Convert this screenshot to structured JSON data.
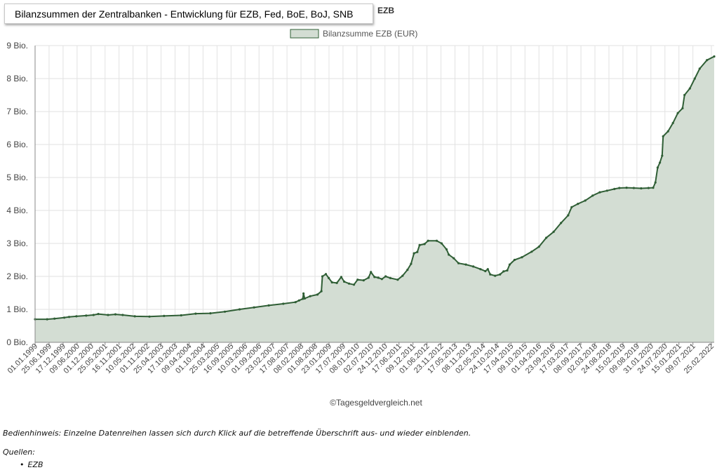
{
  "header": {
    "title": "Bilanzsummen der Zentralbanken - Entwicklung für EZB, Fed, BoE, BoJ, SNB",
    "title_overlap": "EZB"
  },
  "footer": {
    "credit": "©Tagesgeldvergleich.net",
    "hint": "Bedienhinweis: Einzelne Datenreihen lassen sich durch Klick auf die betreffende Überschrift aus- und wieder einblenden.",
    "sources_label": "Quellen:",
    "sources": [
      "EZB"
    ]
  },
  "chart_data": {
    "type": "area",
    "title": "Bilanzsummen der Zentralbanken - Entwicklung für EZB, Fed, BoE, BoJ, SNB",
    "legend_position": "top",
    "grid": true,
    "x_start": "1999-01-01",
    "x_end": "2022-04-01",
    "ylim": [
      0,
      9
    ],
    "y_ticks": [
      {
        "value": 0,
        "label": "0 Bio."
      },
      {
        "value": 1,
        "label": "1 Bio."
      },
      {
        "value": 2,
        "label": "2 Bio."
      },
      {
        "value": 3,
        "label": "3 Bio."
      },
      {
        "value": 4,
        "label": "4 Bio."
      },
      {
        "value": 5,
        "label": "5 Bio."
      },
      {
        "value": 6,
        "label": "6 Bio."
      },
      {
        "value": 7,
        "label": "7 Bio."
      },
      {
        "value": 8,
        "label": "8 Bio."
      },
      {
        "value": 9,
        "label": "9 Bio."
      }
    ],
    "x_tick_labels": [
      {
        "date": "1999-01-01",
        "label": "01.01.1999"
      },
      {
        "date": "1999-06-25",
        "label": "25.06.1999"
      },
      {
        "date": "1999-12-17",
        "label": "17.12.1999"
      },
      {
        "date": "2000-06-09",
        "label": "09.06.2000"
      },
      {
        "date": "2000-12-01",
        "label": "01.12.2000"
      },
      {
        "date": "2001-05-25",
        "label": "25.05.2001"
      },
      {
        "date": "2001-11-16",
        "label": "16.11.2001"
      },
      {
        "date": "2002-05-10",
        "label": "10.05.2002"
      },
      {
        "date": "2002-11-01",
        "label": "01.11.2002"
      },
      {
        "date": "2003-04-25",
        "label": "25.04.2003"
      },
      {
        "date": "2003-10-17",
        "label": "17.10.2003"
      },
      {
        "date": "2004-04-09",
        "label": "09.04.2004"
      },
      {
        "date": "2004-10-01",
        "label": "01.10.2004"
      },
      {
        "date": "2005-03-25",
        "label": "25.03.2005"
      },
      {
        "date": "2005-09-16",
        "label": "16.09.2005"
      },
      {
        "date": "2006-03-10",
        "label": "10.03.2006"
      },
      {
        "date": "2006-09-01",
        "label": "01.09.2006"
      },
      {
        "date": "2007-02-23",
        "label": "23.02.2007"
      },
      {
        "date": "2007-08-17",
        "label": "17.08.2007"
      },
      {
        "date": "2008-02-08",
        "label": "08.02.2008"
      },
      {
        "date": "2008-08-01",
        "label": "01.08.2008"
      },
      {
        "date": "2009-01-23",
        "label": "23.01.2009"
      },
      {
        "date": "2009-07-17",
        "label": "17.07.2009"
      },
      {
        "date": "2010-01-08",
        "label": "08.01.2010"
      },
      {
        "date": "2010-07-02",
        "label": "02.07.2010"
      },
      {
        "date": "2010-12-24",
        "label": "24.12.2010"
      },
      {
        "date": "2011-06-17",
        "label": "17.06.2011"
      },
      {
        "date": "2011-12-09",
        "label": "09.12.2011"
      },
      {
        "date": "2012-06-01",
        "label": "01.06.2012"
      },
      {
        "date": "2012-11-23",
        "label": "23.11.2012"
      },
      {
        "date": "2013-05-17",
        "label": "17.05.2013"
      },
      {
        "date": "2013-11-08",
        "label": "08.11.2013"
      },
      {
        "date": "2014-05-02",
        "label": "02.05.2014"
      },
      {
        "date": "2014-10-24",
        "label": "24.10.2014"
      },
      {
        "date": "2015-04-17",
        "label": "17.04.2015"
      },
      {
        "date": "2015-10-09",
        "label": "09.10.2015"
      },
      {
        "date": "2016-04-01",
        "label": "01.04.2016"
      },
      {
        "date": "2016-09-23",
        "label": "23.09.2016"
      },
      {
        "date": "2017-03-17",
        "label": "17.03.2017"
      },
      {
        "date": "2017-09-08",
        "label": "08.09.2017"
      },
      {
        "date": "2018-03-02",
        "label": "02.03.2018"
      },
      {
        "date": "2018-08-24",
        "label": "24.08.2018"
      },
      {
        "date": "2019-02-15",
        "label": "15.02.2019"
      },
      {
        "date": "2019-08-09",
        "label": "09.08.2019"
      },
      {
        "date": "2020-01-31",
        "label": "31.01.2020"
      },
      {
        "date": "2020-07-24",
        "label": "24.07.2020"
      },
      {
        "date": "2021-01-15",
        "label": "15.01.2021"
      },
      {
        "date": "2021-07-09",
        "label": "09.07.2021"
      },
      {
        "date": "2022-02-25",
        "label": "25.02.2022"
      }
    ],
    "series": [
      {
        "name": "Bilanzsumme EZB (EUR)",
        "color": "#2f5e35",
        "fill": "#d3ddd3",
        "points": [
          {
            "date": "1999-01-01",
            "value": 0.7
          },
          {
            "date": "1999-06-01",
            "value": 0.7
          },
          {
            "date": "1999-09-01",
            "value": 0.72
          },
          {
            "date": "2000-01-01",
            "value": 0.75
          },
          {
            "date": "2000-03-01",
            "value": 0.77
          },
          {
            "date": "2000-06-01",
            "value": 0.79
          },
          {
            "date": "2000-10-01",
            "value": 0.81
          },
          {
            "date": "2001-01-01",
            "value": 0.83
          },
          {
            "date": "2001-03-01",
            "value": 0.86
          },
          {
            "date": "2001-07-01",
            "value": 0.83
          },
          {
            "date": "2001-10-01",
            "value": 0.85
          },
          {
            "date": "2002-01-01",
            "value": 0.83
          },
          {
            "date": "2002-06-01",
            "value": 0.79
          },
          {
            "date": "2002-12-01",
            "value": 0.78
          },
          {
            "date": "2003-06-01",
            "value": 0.8
          },
          {
            "date": "2004-01-01",
            "value": 0.82
          },
          {
            "date": "2004-07-01",
            "value": 0.87
          },
          {
            "date": "2005-01-01",
            "value": 0.88
          },
          {
            "date": "2005-07-01",
            "value": 0.93
          },
          {
            "date": "2006-01-01",
            "value": 1.0
          },
          {
            "date": "2006-07-01",
            "value": 1.06
          },
          {
            "date": "2007-01-01",
            "value": 1.12
          },
          {
            "date": "2007-07-01",
            "value": 1.17
          },
          {
            "date": "2007-12-01",
            "value": 1.22
          },
          {
            "date": "2008-01-15",
            "value": 1.27
          },
          {
            "date": "2008-03-01",
            "value": 1.32
          },
          {
            "date": "2008-03-10",
            "value": 1.48
          },
          {
            "date": "2008-03-25",
            "value": 1.33
          },
          {
            "date": "2008-06-01",
            "value": 1.4
          },
          {
            "date": "2008-09-01",
            "value": 1.45
          },
          {
            "date": "2008-10-20",
            "value": 1.55
          },
          {
            "date": "2008-11-01",
            "value": 2.0
          },
          {
            "date": "2008-12-15",
            "value": 2.07
          },
          {
            "date": "2009-01-20",
            "value": 1.95
          },
          {
            "date": "2009-03-01",
            "value": 1.82
          },
          {
            "date": "2009-05-01",
            "value": 1.8
          },
          {
            "date": "2009-06-25",
            "value": 1.98
          },
          {
            "date": "2009-08-01",
            "value": 1.84
          },
          {
            "date": "2009-10-01",
            "value": 1.78
          },
          {
            "date": "2009-12-01",
            "value": 1.75
          },
          {
            "date": "2010-01-15",
            "value": 1.9
          },
          {
            "date": "2010-04-01",
            "value": 1.88
          },
          {
            "date": "2010-06-01",
            "value": 1.96
          },
          {
            "date": "2010-07-01",
            "value": 2.13
          },
          {
            "date": "2010-08-15",
            "value": 1.98
          },
          {
            "date": "2010-10-01",
            "value": 1.96
          },
          {
            "date": "2010-11-15",
            "value": 1.92
          },
          {
            "date": "2011-01-01",
            "value": 2.0
          },
          {
            "date": "2011-03-01",
            "value": 1.95
          },
          {
            "date": "2011-06-01",
            "value": 1.9
          },
          {
            "date": "2011-08-01",
            "value": 2.02
          },
          {
            "date": "2011-10-01",
            "value": 2.2
          },
          {
            "date": "2011-11-15",
            "value": 2.38
          },
          {
            "date": "2011-12-22",
            "value": 2.7
          },
          {
            "date": "2012-02-01",
            "value": 2.74
          },
          {
            "date": "2012-03-01",
            "value": 2.95
          },
          {
            "date": "2012-05-01",
            "value": 2.98
          },
          {
            "date": "2012-06-15",
            "value": 3.08
          },
          {
            "date": "2012-10-01",
            "value": 3.08
          },
          {
            "date": "2012-12-01",
            "value": 3.0
          },
          {
            "date": "2013-02-01",
            "value": 2.82
          },
          {
            "date": "2013-03-01",
            "value": 2.66
          },
          {
            "date": "2013-05-01",
            "value": 2.55
          },
          {
            "date": "2013-07-01",
            "value": 2.4
          },
          {
            "date": "2013-10-01",
            "value": 2.36
          },
          {
            "date": "2014-01-01",
            "value": 2.3
          },
          {
            "date": "2014-04-01",
            "value": 2.22
          },
          {
            "date": "2014-06-01",
            "value": 2.16
          },
          {
            "date": "2014-07-01",
            "value": 2.22
          },
          {
            "date": "2014-08-01",
            "value": 2.06
          },
          {
            "date": "2014-10-01",
            "value": 2.02
          },
          {
            "date": "2014-12-01",
            "value": 2.06
          },
          {
            "date": "2015-01-15",
            "value": 2.15
          },
          {
            "date": "2015-03-01",
            "value": 2.18
          },
          {
            "date": "2015-04-01",
            "value": 2.36
          },
          {
            "date": "2015-06-01",
            "value": 2.5
          },
          {
            "date": "2015-09-01",
            "value": 2.58
          },
          {
            "date": "2016-01-01",
            "value": 2.75
          },
          {
            "date": "2016-04-01",
            "value": 2.9
          },
          {
            "date": "2016-07-01",
            "value": 3.17
          },
          {
            "date": "2016-10-01",
            "value": 3.35
          },
          {
            "date": "2017-01-01",
            "value": 3.62
          },
          {
            "date": "2017-04-01",
            "value": 3.85
          },
          {
            "date": "2017-05-15",
            "value": 4.1
          },
          {
            "date": "2017-08-01",
            "value": 4.2
          },
          {
            "date": "2017-11-01",
            "value": 4.3
          },
          {
            "date": "2018-02-01",
            "value": 4.45
          },
          {
            "date": "2018-05-01",
            "value": 4.55
          },
          {
            "date": "2018-08-01",
            "value": 4.6
          },
          {
            "date": "2018-11-01",
            "value": 4.65
          },
          {
            "date": "2019-01-01",
            "value": 4.68
          },
          {
            "date": "2019-04-01",
            "value": 4.69
          },
          {
            "date": "2019-07-01",
            "value": 4.68
          },
          {
            "date": "2019-10-01",
            "value": 4.67
          },
          {
            "date": "2020-01-01",
            "value": 4.68
          },
          {
            "date": "2020-02-28",
            "value": 4.69
          },
          {
            "date": "2020-03-27",
            "value": 4.85
          },
          {
            "date": "2020-04-24",
            "value": 5.3
          },
          {
            "date": "2020-05-22",
            "value": 5.45
          },
          {
            "date": "2020-06-19",
            "value": 5.66
          },
          {
            "date": "2020-07-01",
            "value": 6.25
          },
          {
            "date": "2020-09-01",
            "value": 6.4
          },
          {
            "date": "2020-11-01",
            "value": 6.65
          },
          {
            "date": "2021-01-01",
            "value": 6.95
          },
          {
            "date": "2021-03-01",
            "value": 7.1
          },
          {
            "date": "2021-03-26",
            "value": 7.5
          },
          {
            "date": "2021-06-01",
            "value": 7.7
          },
          {
            "date": "2021-08-01",
            "value": 8.0
          },
          {
            "date": "2021-10-01",
            "value": 8.3
          },
          {
            "date": "2022-01-01",
            "value": 8.56
          },
          {
            "date": "2022-04-01",
            "value": 8.67
          }
        ]
      }
    ]
  }
}
